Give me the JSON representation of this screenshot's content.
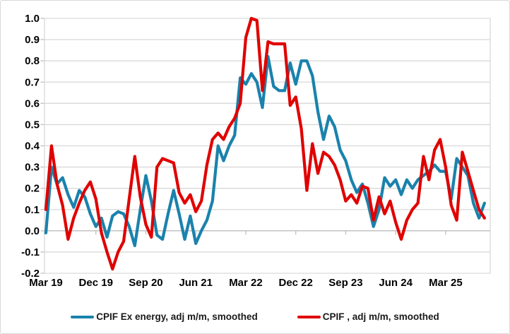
{
  "chart_data": {
    "type": "line",
    "title": "",
    "xlabel": "",
    "ylabel": "",
    "ylim": [
      -0.2,
      1.0
    ],
    "grid": true,
    "legend_position": "bottom",
    "x_unit": "monthly, starting Mar 2019",
    "x_tick_labels": [
      "Mar 19",
      "Dec 19",
      "Sep 20",
      "Jun 21",
      "Mar 22",
      "Dec 22",
      "Sep 23",
      "Jun 24",
      "Mar 25"
    ],
    "x_tick_month_indices": [
      0,
      9,
      18,
      27,
      36,
      45,
      54,
      63,
      72
    ],
    "y_axis_labels": [
      "1.0",
      "0.9",
      "0.8",
      "0.7",
      "0.6",
      "0.5",
      "0.4",
      "0.3",
      "0.2",
      "0.1",
      "0.0",
      "-0.1",
      "-0.2"
    ],
    "series": [
      {
        "name": "CPIF Ex energy, adj m/m, smoothed",
        "color": "#1a82ac",
        "values": [
          -0.01,
          0.3,
          0.22,
          0.25,
          0.17,
          0.11,
          0.19,
          0.16,
          0.08,
          0.02,
          0.06,
          -0.03,
          0.07,
          0.09,
          0.08,
          0.02,
          -0.07,
          0.1,
          0.26,
          0.14,
          -0.02,
          -0.04,
          0.08,
          0.19,
          0.08,
          -0.04,
          0.07,
          -0.06,
          0.0,
          0.05,
          0.14,
          0.4,
          0.33,
          0.4,
          0.45,
          0.72,
          0.69,
          0.74,
          0.7,
          0.58,
          0.82,
          0.68,
          0.66,
          0.66,
          0.79,
          0.69,
          0.8,
          0.8,
          0.73,
          0.56,
          0.43,
          0.54,
          0.49,
          0.38,
          0.33,
          0.24,
          0.18,
          0.22,
          0.13,
          0.02,
          0.1,
          0.25,
          0.21,
          0.24,
          0.17,
          0.24,
          0.2,
          0.24,
          0.26,
          0.28,
          0.31,
          0.28,
          0.28,
          0.15,
          0.34,
          0.3,
          0.26,
          0.13,
          0.06,
          0.13
        ]
      },
      {
        "name": "CPIF , adj m/m, smoothed",
        "color": "#e00000",
        "values": [
          0.1,
          0.4,
          0.22,
          0.12,
          -0.04,
          0.06,
          0.13,
          0.19,
          0.23,
          0.15,
          -0.01,
          -0.1,
          -0.18,
          -0.1,
          -0.05,
          0.15,
          0.35,
          0.16,
          0.03,
          -0.03,
          0.3,
          0.34,
          0.33,
          0.32,
          0.18,
          0.13,
          0.17,
          0.09,
          0.14,
          0.31,
          0.43,
          0.46,
          0.43,
          0.49,
          0.53,
          0.6,
          0.91,
          1.0,
          0.99,
          0.66,
          0.89,
          0.88,
          0.88,
          0.88,
          0.59,
          0.63,
          0.48,
          0.19,
          0.41,
          0.27,
          0.37,
          0.35,
          0.31,
          0.24,
          0.14,
          0.17,
          0.13,
          0.21,
          0.2,
          0.05,
          0.16,
          0.08,
          0.14,
          0.04,
          -0.04,
          0.05,
          0.1,
          0.13,
          0.35,
          0.24,
          0.38,
          0.43,
          0.3,
          0.12,
          0.05,
          0.37,
          0.28,
          0.19,
          0.1,
          0.06
        ]
      }
    ],
    "style": {
      "gridline_color": "#d9d9d9",
      "axis_color": "#bfbfbf",
      "background": "#ffffff",
      "line_width": 4.2
    }
  }
}
